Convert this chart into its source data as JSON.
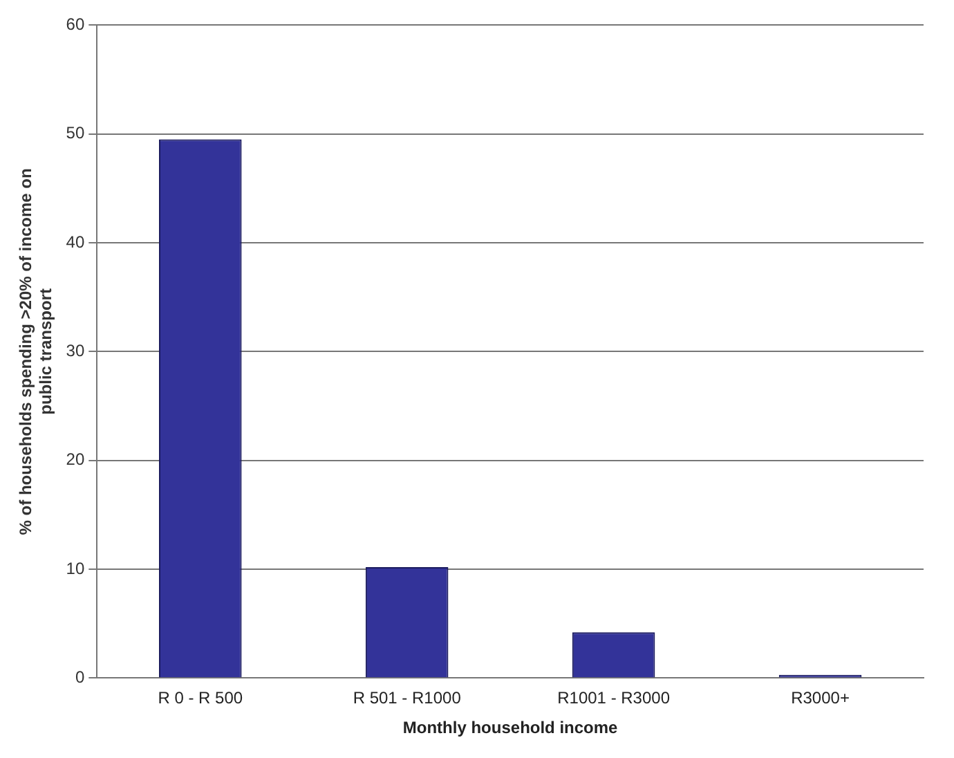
{
  "chart_data": {
    "type": "bar",
    "xlabel": "Monthly household income",
    "ylabel": "% of households spending >20% of income on public transport",
    "categories": [
      "R 0 - R 500",
      "R 501 - R1000",
      "R1001 - R3000",
      "R3000+"
    ],
    "values": [
      49.5,
      10.2,
      4.2,
      0.3
    ],
    "color": "#333399",
    "ylim": [
      0,
      60
    ],
    "yticks": [
      0,
      10,
      20,
      30,
      40,
      50,
      60
    ],
    "grid": "y",
    "legend": false
  }
}
